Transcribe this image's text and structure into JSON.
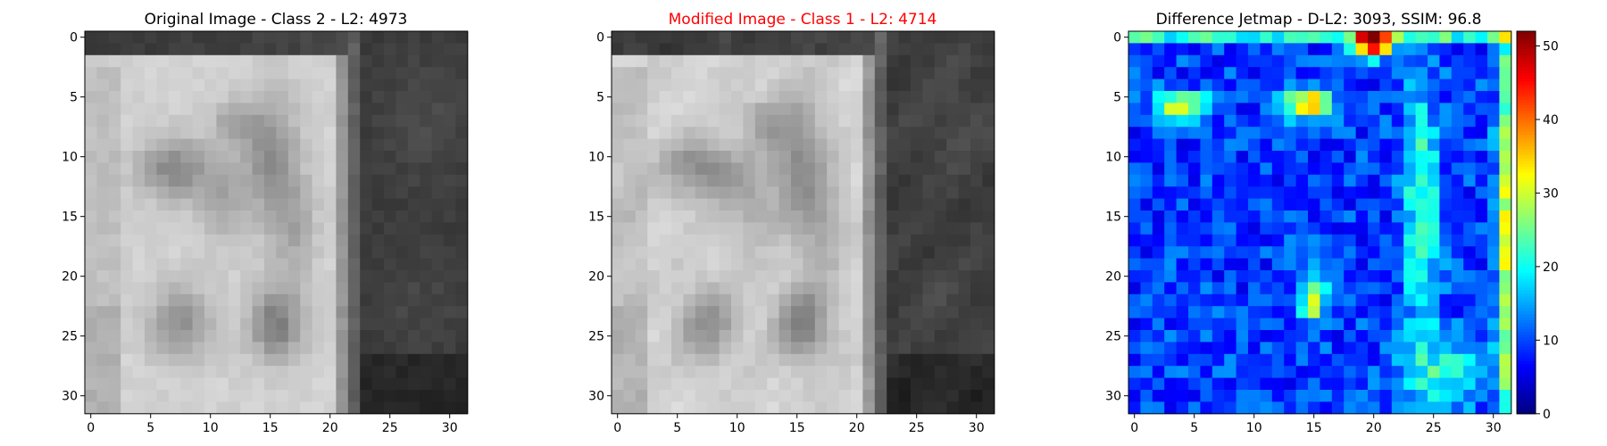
{
  "chart_data": [
    {
      "type": "heatmap",
      "title": "Original Image - Class 2 - L2: 4973",
      "title_color": "#000000",
      "colormap": "gray",
      "xticks": [
        0,
        5,
        10,
        15,
        20,
        25,
        30
      ],
      "yticks": [
        0,
        5,
        10,
        15,
        20,
        25,
        30
      ],
      "xlim": [
        0,
        31
      ],
      "ylim": [
        0,
        31
      ],
      "value_range": [
        0,
        255
      ],
      "grid": false
    },
    {
      "type": "heatmap",
      "title": "Modified Image - Class 1 - L2: 4714",
      "title_color": "#ff0000",
      "colormap": "gray",
      "xticks": [
        0,
        5,
        10,
        15,
        20,
        25,
        30
      ],
      "yticks": [
        0,
        5,
        10,
        15,
        20,
        25,
        30
      ],
      "xlim": [
        0,
        31
      ],
      "ylim": [
        0,
        31
      ],
      "value_range": [
        0,
        255
      ],
      "grid": false
    },
    {
      "type": "heatmap",
      "title": "Difference Jetmap - D-L2: 3093, SSIM: 96.8",
      "title_color": "#000000",
      "colormap": "jet",
      "xticks": [
        0,
        5,
        10,
        15,
        20,
        25,
        30
      ],
      "yticks": [
        0,
        5,
        10,
        15,
        20,
        25,
        30
      ],
      "xlim": [
        0,
        31
      ],
      "ylim": [
        0,
        31
      ],
      "colorbar": {
        "ticks": [
          0,
          10,
          20,
          30,
          40,
          50
        ],
        "range": [
          0,
          52
        ]
      },
      "grid": false
    }
  ]
}
